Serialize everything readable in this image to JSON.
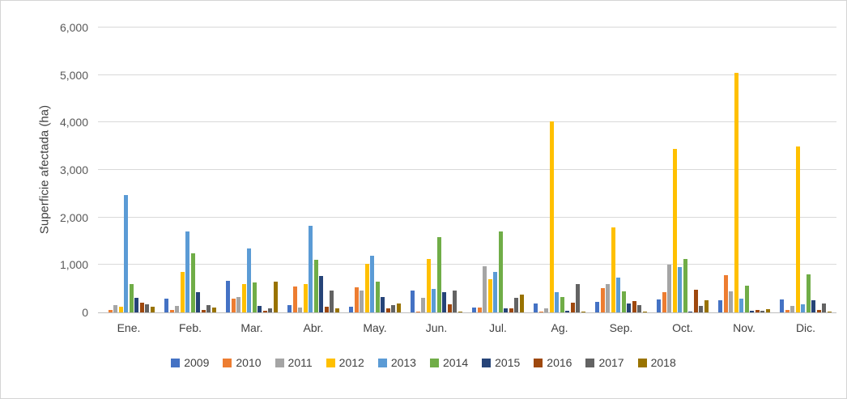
{
  "chart": {
    "ylabel": "Superficie afectada (ha)"
  },
  "chart_data": {
    "type": "bar",
    "title": "",
    "xlabel": "",
    "ylabel": "Superficie afectada (ha)",
    "ylim": [
      0,
      6000
    ],
    "ytick_interval": 1000,
    "ytick_labels": [
      "0",
      "1,000",
      "2,000",
      "3,000",
      "4,000",
      "5,000",
      "6,000"
    ],
    "grid": true,
    "legend_position": "bottom",
    "categories": [
      "Ene.",
      "Feb.",
      "Mar.",
      "Abr.",
      "May.",
      "Jun.",
      "Jul.",
      "Ag.",
      "Sep.",
      "Oct.",
      "Nov.",
      "Dic."
    ],
    "series": [
      {
        "name": "2009",
        "color": "#4472C4",
        "values": [
          0,
          290,
          660,
          160,
          125,
          465,
          105,
          190,
          215,
          270,
          260,
          280
        ]
      },
      {
        "name": "2010",
        "color": "#ED7D31",
        "values": [
          45,
          50,
          295,
          540,
          530,
          10,
          100,
          10,
          520,
          425,
          785,
          45
        ]
      },
      {
        "name": "2011",
        "color": "#A5A5A5",
        "values": [
          150,
          140,
          330,
          110,
          455,
          300,
          975,
          85,
          590,
          1000,
          450,
          140
        ]
      },
      {
        "name": "2012",
        "color": "#FFC000",
        "values": [
          120,
          860,
          600,
          600,
          1020,
          1120,
          700,
          4030,
          1790,
          3440,
          5050,
          3500
        ]
      },
      {
        "name": "2013",
        "color": "#5B9BD5",
        "values": [
          2480,
          1710,
          1340,
          1820,
          1190,
          500,
          860,
          420,
          730,
          960,
          290,
          170
        ]
      },
      {
        "name": "2014",
        "color": "#70AD47",
        "values": [
          590,
          1250,
          625,
          1100,
          645,
          1590,
          1700,
          320,
          445,
          1125,
          560,
          795
        ]
      },
      {
        "name": "2015",
        "color": "#264478",
        "values": [
          310,
          430,
          140,
          765,
          330,
          430,
          80,
          35,
          190,
          10,
          35,
          255
        ]
      },
      {
        "name": "2016",
        "color": "#9E480E",
        "values": [
          210,
          55,
          30,
          120,
          85,
          170,
          85,
          200,
          245,
          485,
          45,
          55
        ]
      },
      {
        "name": "2017",
        "color": "#636363",
        "values": [
          165,
          160,
          85,
          455,
          160,
          460,
          310,
          590,
          160,
          140,
          40,
          180
        ]
      },
      {
        "name": "2018",
        "color": "#997300",
        "values": [
          125,
          100,
          650,
          85,
          185,
          15,
          370,
          25,
          15,
          255,
          70,
          10
        ]
      }
    ]
  }
}
